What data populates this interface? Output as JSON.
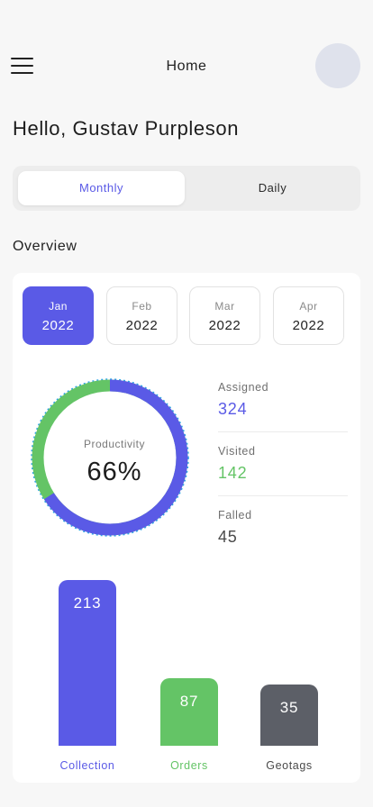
{
  "header": {
    "title": "Home"
  },
  "greeting": "Hello, Gustav Purpleson",
  "tabs": {
    "active": "Monthly",
    "inactive": "Daily"
  },
  "overview": {
    "title": "Overview",
    "months": [
      {
        "month": "Jan",
        "year": "2022",
        "active": true
      },
      {
        "month": "Feb",
        "year": "2022",
        "active": false
      },
      {
        "month": "Mar",
        "year": "2022",
        "active": false
      },
      {
        "month": "Apr",
        "year": "2022",
        "active": false
      }
    ],
    "productivity": {
      "label": "Productivity",
      "value": "66%",
      "fraction": 0.66
    },
    "stats": [
      {
        "label": "Assigned",
        "value": "324"
      },
      {
        "label": "Visited",
        "value": "142"
      },
      {
        "label": "Falled",
        "value": "45"
      }
    ]
  },
  "colors": {
    "accent": "#5a5ae6",
    "green": "#64c466",
    "gray": "#5c5f67",
    "dotted": "#2aa3e6"
  },
  "chart_data": {
    "type": "bar",
    "categories": [
      "Collection",
      "Orders",
      "Geotags"
    ],
    "values": [
      213,
      87,
      35
    ],
    "colors": [
      "#5a5ae6",
      "#64c466",
      "#5c5f67"
    ]
  }
}
